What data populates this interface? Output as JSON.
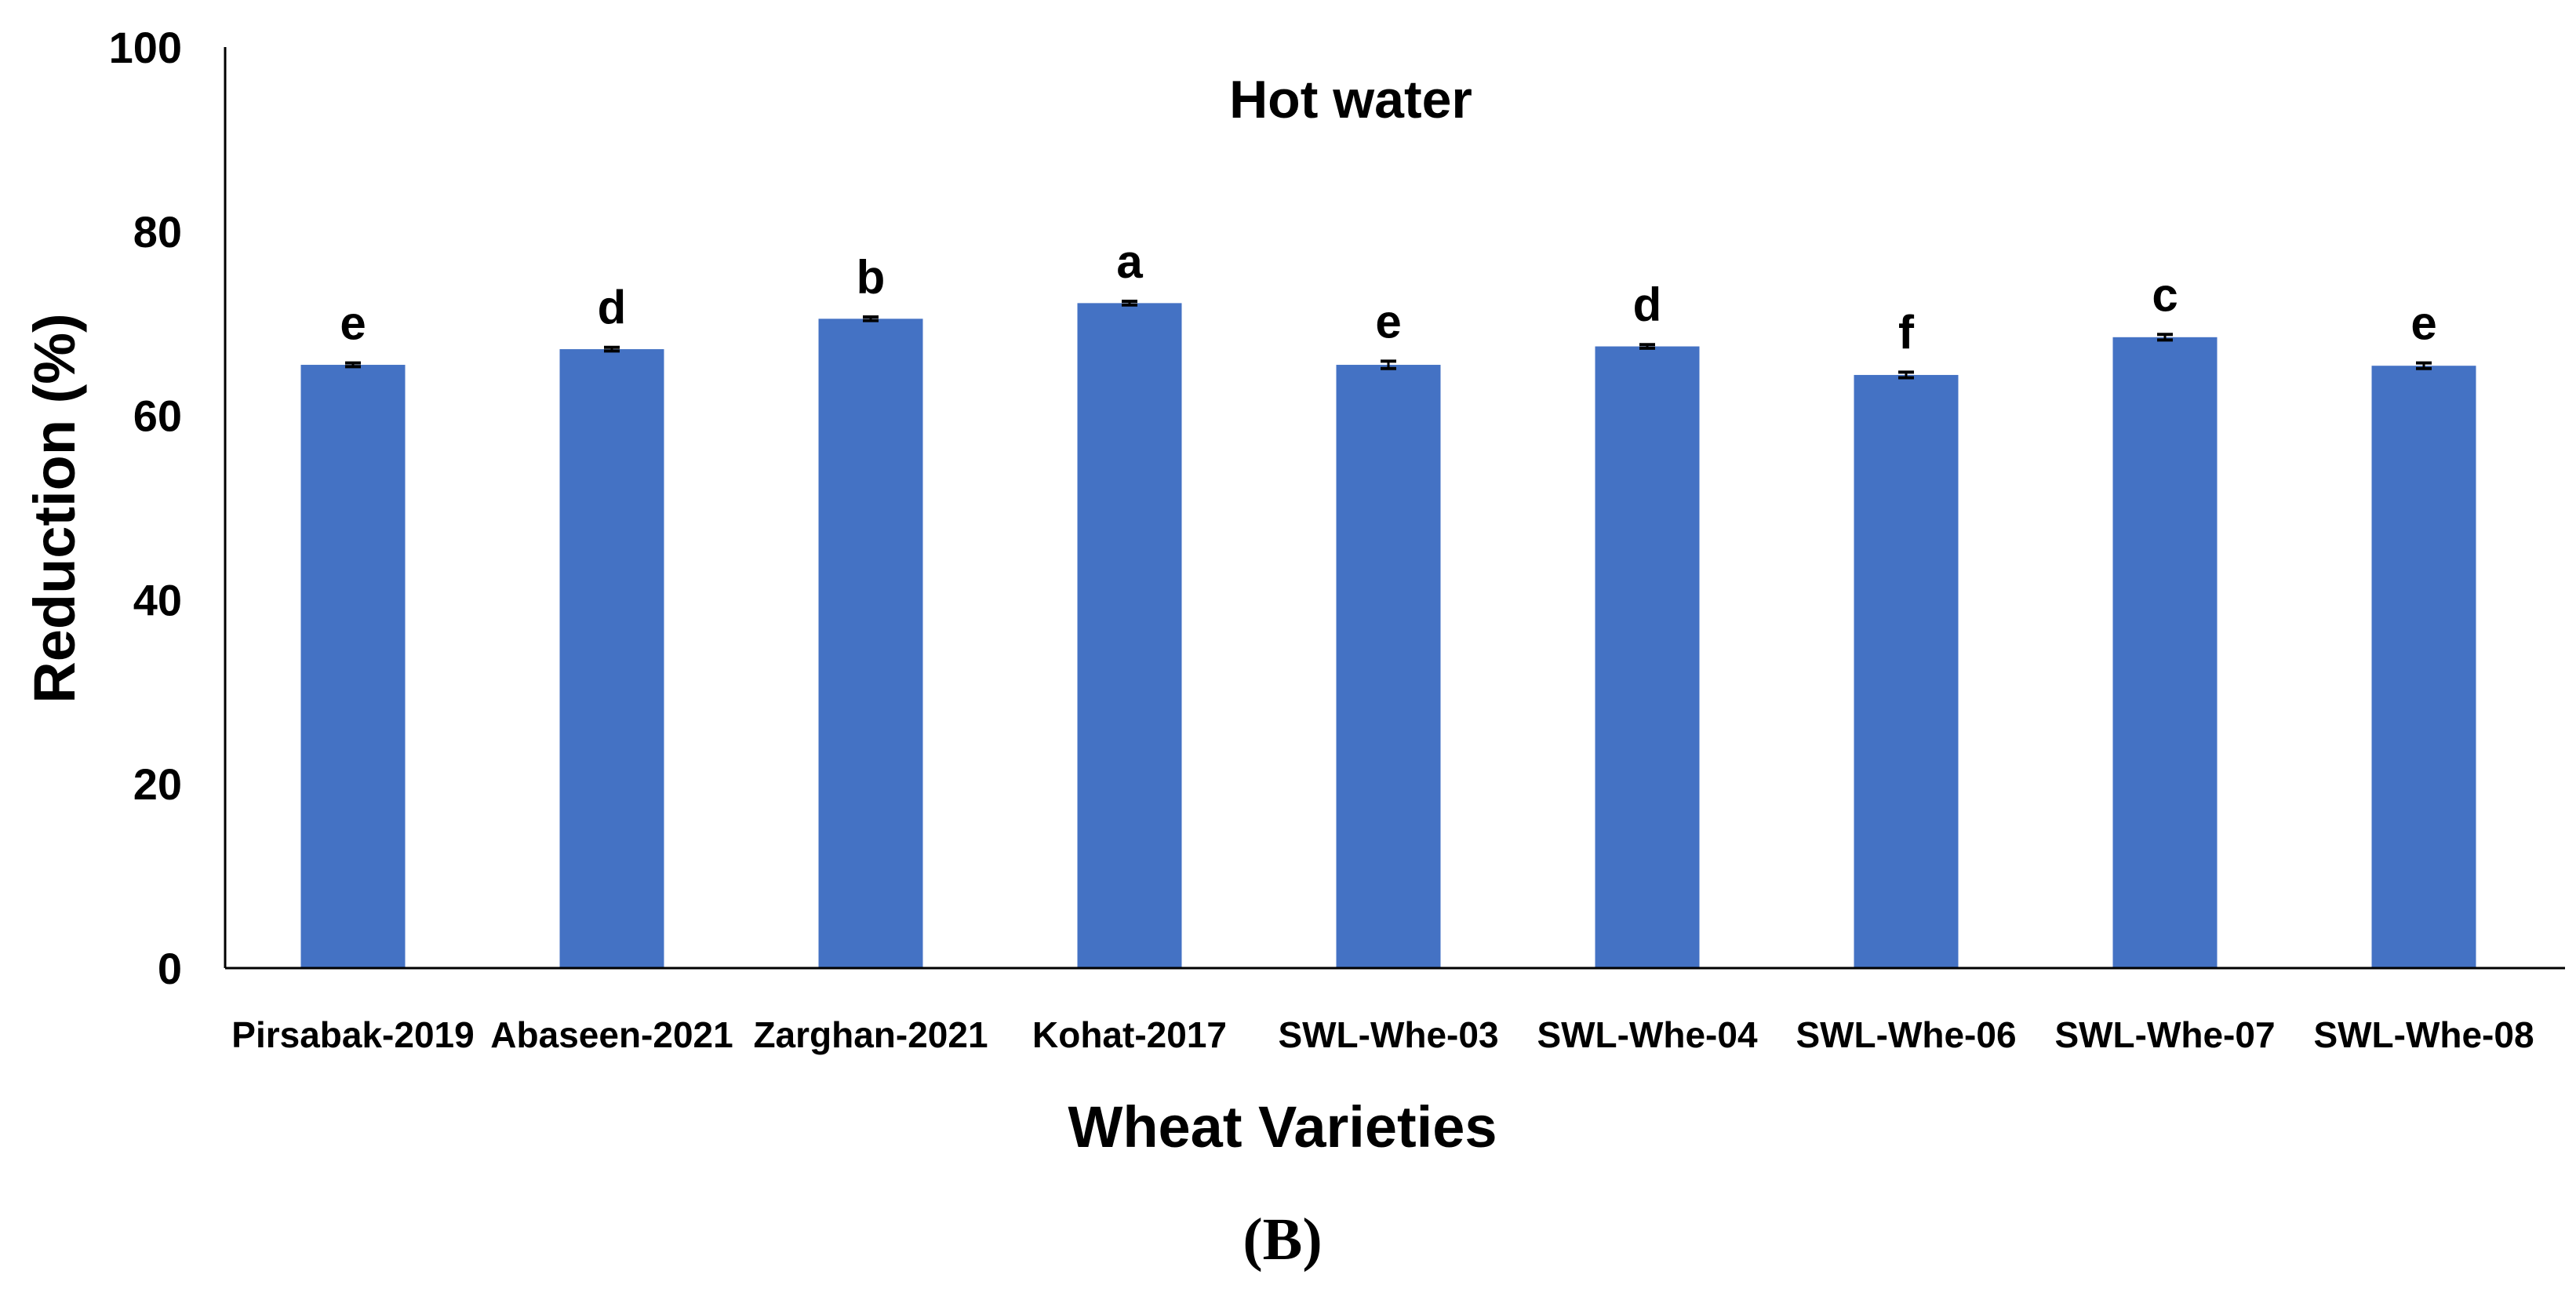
{
  "chart_data": {
    "type": "bar",
    "title": "Hot water",
    "xlabel": "Wheat Varieties",
    "ylabel": "Reduction (%)",
    "ylim": [
      0,
      100
    ],
    "yticks": [
      0,
      20,
      40,
      60,
      80,
      100
    ],
    "grid": false,
    "legend": "none",
    "categories": [
      "Pirsabak-2019",
      "Abaseen-2021",
      "Zarghan-2021",
      "Kohat-2017",
      "SWL-Whe-03",
      "SWL-Whe-04",
      "SWL-Whe-06",
      "SWL-Whe-07",
      "SWL-Whe-08"
    ],
    "values": [
      65.5,
      67.2,
      70.5,
      72.2,
      65.5,
      67.5,
      64.4,
      68.5,
      65.4
    ],
    "errors": [
      0.2,
      0.2,
      0.2,
      0.2,
      0.4,
      0.2,
      0.3,
      0.3,
      0.3
    ],
    "significance_letters": [
      "e",
      "d",
      "b",
      "a",
      "e",
      "d",
      "f",
      "c",
      "e"
    ],
    "bar_color": "#4472C4"
  },
  "panel_label": "(B)"
}
